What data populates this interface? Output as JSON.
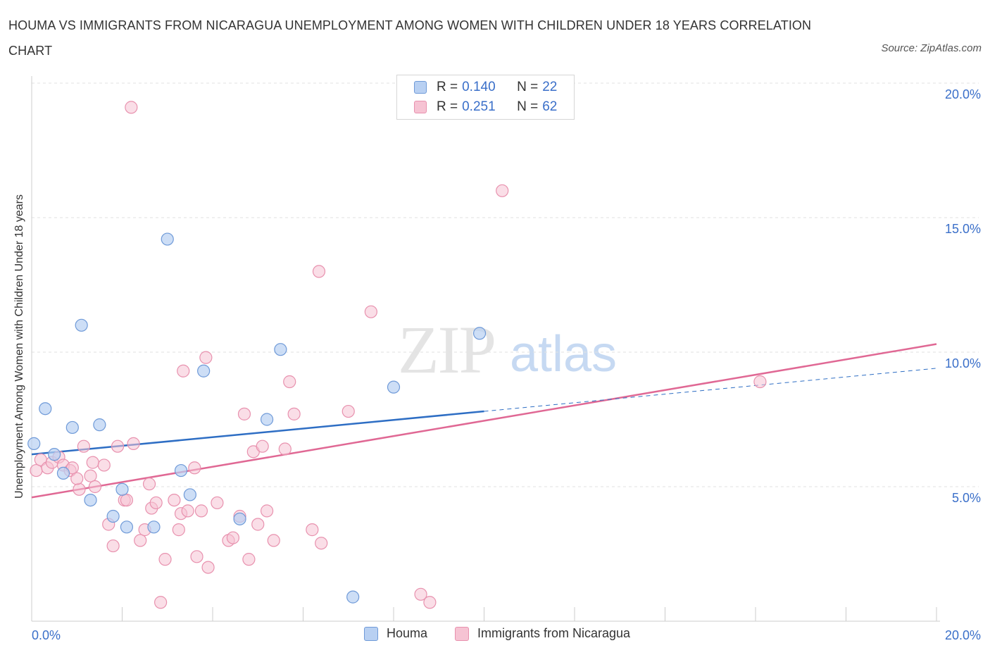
{
  "title": "HOUMA VS IMMIGRANTS FROM NICARAGUA UNEMPLOYMENT AMONG WOMEN WITH CHILDREN UNDER 18 YEARS CORRELATION CHART",
  "source": "Source: ZipAtlas.com",
  "watermark": {
    "zip": "ZIP",
    "atlas": "atlas"
  },
  "legend": {
    "rows": [
      {
        "r_label": "R = ",
        "r_value": "0.140",
        "n_label": "N = ",
        "n_value": "22"
      },
      {
        "r_label": "R = ",
        "r_value": "0.251",
        "n_label": "N = ",
        "n_value": "62"
      }
    ]
  },
  "colors": {
    "houma_fill": "#b8d0f2",
    "houma_stroke": "#6f9ad8",
    "houma_line": "#2e6ec4",
    "nic_fill": "#f6c3d3",
    "nic_stroke": "#e891ae",
    "nic_line": "#e06894",
    "axis_text": "#3a6fc9",
    "grid": "#e2e2e2"
  },
  "chart_data": {
    "type": "scatter",
    "title": "HOUMA VS IMMIGRANTS FROM NICARAGUA UNEMPLOYMENT AMONG WOMEN WITH CHILDREN UNDER 18 YEARS CORRELATION CHART",
    "xlabel": "",
    "ylabel": "Unemployment Among Women with Children Under 18 years",
    "xlim": [
      0,
      20
    ],
    "ylim": [
      0,
      20
    ],
    "x_tick_labels": [
      "0.0%",
      "20.0%"
    ],
    "y_ticks": [
      5,
      10,
      15,
      20
    ],
    "y_tick_labels": [
      "5.0%",
      "10.0%",
      "15.0%",
      "20.0%"
    ],
    "grid": true,
    "legend_position": "bottom",
    "series": [
      {
        "name": "Houma",
        "r": 0.14,
        "n": 22,
        "trend": {
          "x0": 0,
          "y0": 6.2,
          "x1": 10,
          "y1": 7.8,
          "dash_to_x": 20,
          "dash_to_y": 9.4
        },
        "points": [
          [
            0.05,
            6.6
          ],
          [
            0.3,
            7.9
          ],
          [
            0.5,
            6.2
          ],
          [
            0.7,
            5.5
          ],
          [
            0.9,
            7.2
          ],
          [
            1.1,
            11.0
          ],
          [
            1.5,
            7.3
          ],
          [
            1.3,
            4.5
          ],
          [
            1.8,
            3.9
          ],
          [
            2.0,
            4.9
          ],
          [
            2.1,
            3.5
          ],
          [
            2.7,
            3.5
          ],
          [
            3.0,
            14.2
          ],
          [
            3.3,
            5.6
          ],
          [
            3.5,
            4.7
          ],
          [
            3.8,
            9.3
          ],
          [
            4.6,
            3.8
          ],
          [
            5.2,
            7.5
          ],
          [
            5.5,
            10.1
          ],
          [
            8.0,
            8.7
          ],
          [
            9.9,
            10.7
          ],
          [
            7.1,
            0.9
          ]
        ]
      },
      {
        "name": "Immigrants from Nicaragua",
        "r": 0.251,
        "n": 62,
        "trend": {
          "x0": 0,
          "y0": 4.6,
          "x1": 20,
          "y1": 10.3
        },
        "points": [
          [
            0.1,
            5.6
          ],
          [
            0.2,
            6.0
          ],
          [
            0.35,
            5.7
          ],
          [
            0.45,
            5.9
          ],
          [
            0.6,
            6.1
          ],
          [
            0.7,
            5.8
          ],
          [
            0.85,
            5.6
          ],
          [
            1.05,
            4.9
          ],
          [
            1.15,
            6.5
          ],
          [
            1.3,
            5.4
          ],
          [
            1.35,
            5.9
          ],
          [
            1.4,
            5.0
          ],
          [
            1.6,
            5.8
          ],
          [
            1.7,
            3.6
          ],
          [
            1.8,
            2.8
          ],
          [
            1.9,
            6.5
          ],
          [
            2.05,
            4.5
          ],
          [
            2.1,
            4.5
          ],
          [
            2.2,
            19.1
          ],
          [
            2.25,
            6.6
          ],
          [
            2.4,
            3.0
          ],
          [
            2.5,
            3.4
          ],
          [
            2.6,
            5.1
          ],
          [
            2.65,
            4.2
          ],
          [
            2.75,
            4.4
          ],
          [
            2.85,
            0.7
          ],
          [
            2.95,
            2.3
          ],
          [
            3.15,
            4.5
          ],
          [
            3.25,
            3.4
          ],
          [
            3.3,
            4.0
          ],
          [
            3.35,
            9.3
          ],
          [
            3.45,
            4.1
          ],
          [
            3.6,
            5.7
          ],
          [
            3.65,
            2.4
          ],
          [
            3.75,
            4.1
          ],
          [
            3.85,
            9.8
          ],
          [
            3.9,
            2.0
          ],
          [
            4.1,
            4.4
          ],
          [
            4.35,
            3.0
          ],
          [
            4.45,
            3.1
          ],
          [
            4.6,
            3.9
          ],
          [
            4.7,
            7.7
          ],
          [
            4.8,
            2.3
          ],
          [
            4.9,
            6.3
          ],
          [
            5.0,
            3.6
          ],
          [
            5.1,
            6.5
          ],
          [
            5.2,
            4.1
          ],
          [
            5.35,
            3.0
          ],
          [
            5.6,
            6.4
          ],
          [
            5.7,
            8.9
          ],
          [
            5.8,
            7.7
          ],
          [
            6.2,
            3.4
          ],
          [
            6.35,
            13.0
          ],
          [
            6.4,
            2.9
          ],
          [
            7.0,
            7.8
          ],
          [
            7.5,
            11.5
          ],
          [
            8.8,
            0.7
          ],
          [
            8.6,
            1.0
          ],
          [
            10.4,
            16.0
          ],
          [
            16.1,
            8.9
          ],
          [
            0.9,
            5.7
          ],
          [
            1.0,
            5.3
          ]
        ]
      }
    ]
  }
}
